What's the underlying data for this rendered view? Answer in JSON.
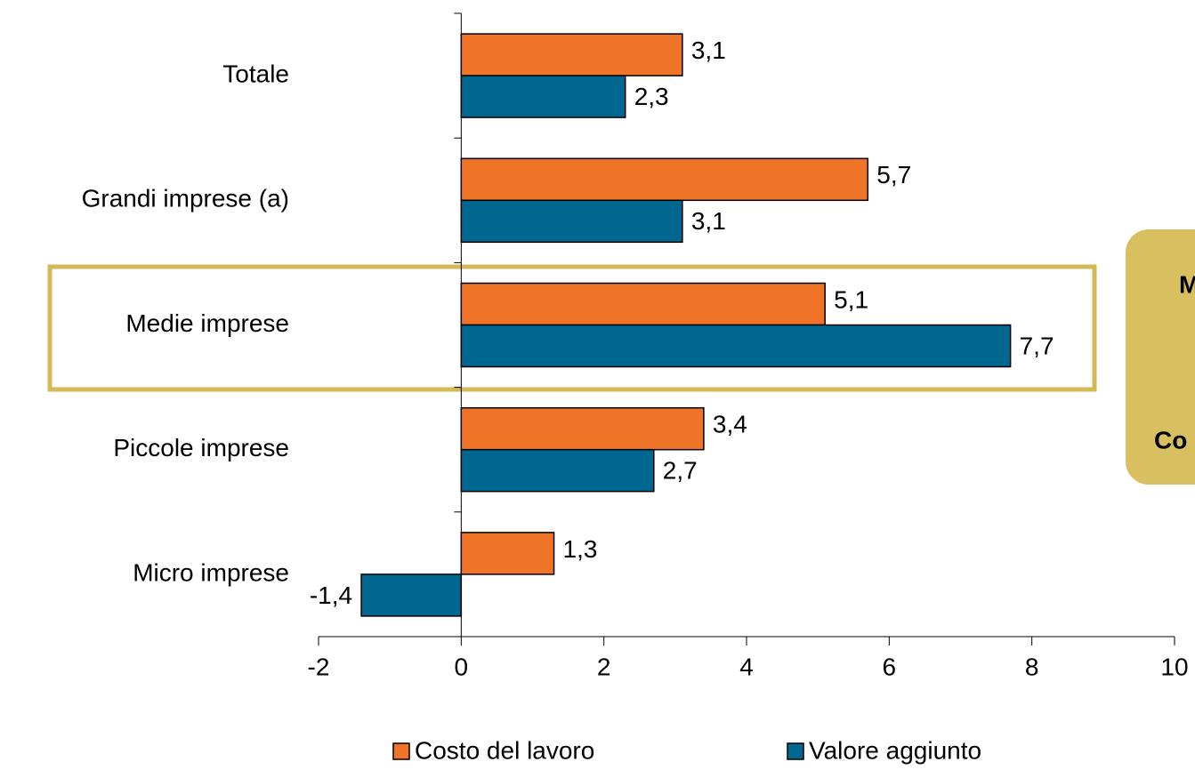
{
  "chart_data": {
    "type": "hbar",
    "categories": [
      "Totale",
      "Grandi imprese (a)",
      "Medie imprese",
      "Piccole imprese",
      "Micro imprese"
    ],
    "series": [
      {
        "name": "Costo del lavoro",
        "color": "#f07428",
        "values": [
          3.1,
          5.7,
          5.1,
          3.4,
          1.3
        ],
        "value_labels": [
          "3,1",
          "5,7",
          "5,1",
          "3,4",
          "1,3"
        ]
      },
      {
        "name": "Valore aggiunto",
        "color": "#006890",
        "values": [
          2.3,
          3.1,
          7.7,
          2.7,
          -1.4
        ],
        "value_labels": [
          "2,3",
          "3,1",
          "7,7",
          "2,7",
          "-1,4"
        ]
      }
    ],
    "xlim": [
      -2,
      10
    ],
    "xticks": [
      -2,
      0,
      2,
      4,
      6,
      8,
      10
    ],
    "legend": "bottom",
    "annotations": [
      "M",
      "Co"
    ]
  }
}
